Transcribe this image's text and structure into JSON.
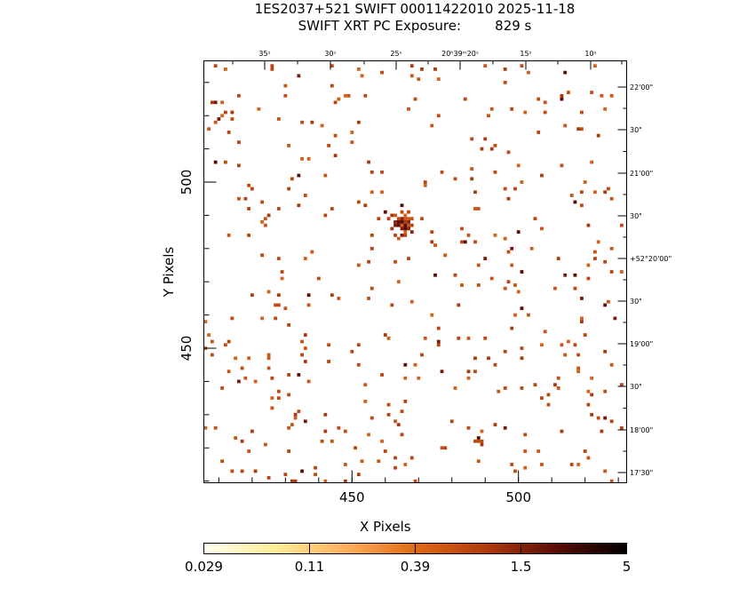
{
  "header": {
    "title_line1": "1ES2037+521 SWIFT 00011422010 2025-11-18",
    "title_line2": "SWIFT XRT PC Exposure:        829 s"
  },
  "chart_data": {
    "type": "heatmap",
    "xlabel": "X Pixels",
    "ylabel": "Y Pixels",
    "xlim": [
      405.5,
      532.5
    ],
    "ylim": [
      409.5,
      536.5
    ],
    "x_ticks": [
      {
        "value": 450,
        "label": "450"
      },
      {
        "value": 500,
        "label": "500"
      }
    ],
    "y_ticks": [
      {
        "value": 450,
        "label": "450"
      },
      {
        "value": 500,
        "label": "500"
      }
    ],
    "ra_ticks": [
      "35ˢ",
      "30ˢ",
      "25ˢ",
      "20ʰ39ᵐ20ˢ",
      "15ˢ",
      "10ˢ"
    ],
    "dec_ticks": [
      "22'00\"",
      "30\"",
      "21'00\"",
      "30\"",
      "+52°20'00\"",
      "30\"",
      "19'00\"",
      "30\"",
      "18'00\"",
      "17'30\""
    ],
    "colorbar": {
      "ticks": [
        "0.029",
        "0.11",
        "0.39",
        "1.5",
        "5"
      ],
      "colors": [
        "#fffff0",
        "#ffee99",
        "#ffb060",
        "#e06a14",
        "#b03a0c",
        "#5a0c06",
        "#000000"
      ]
    },
    "source": {
      "x": 465,
      "y": 487
    }
  }
}
